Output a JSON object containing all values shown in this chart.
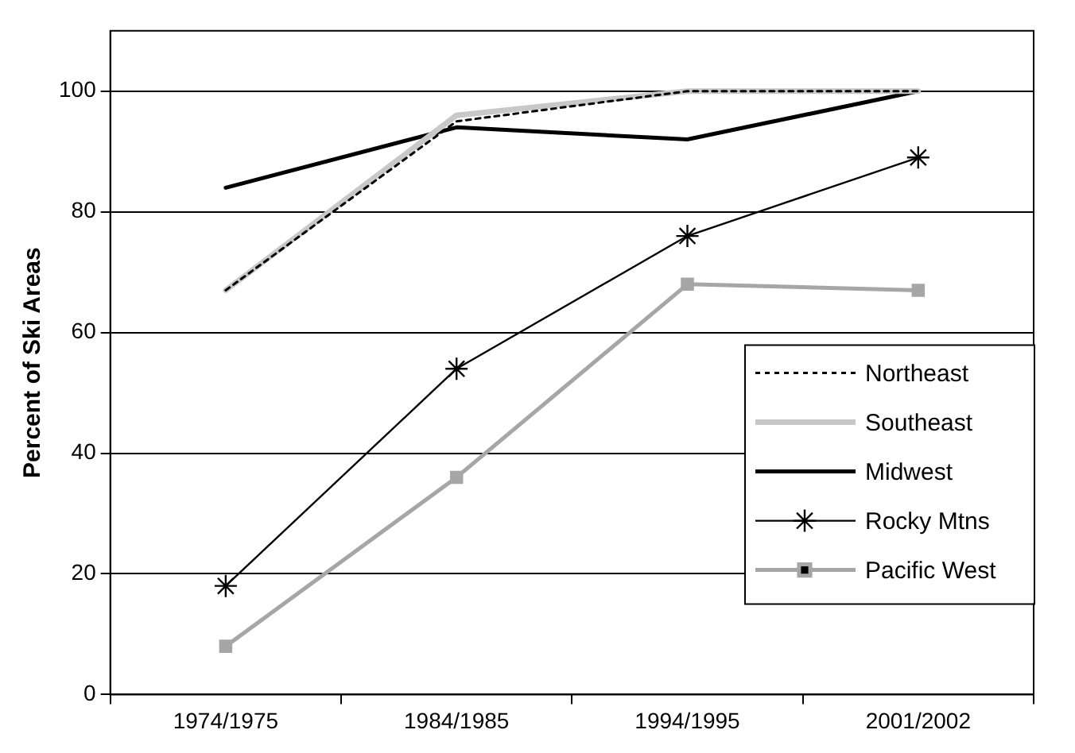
{
  "chart_data": {
    "type": "line",
    "ylabel": "Percent of Ski Areas",
    "categories": [
      "1974/1975",
      "1984/1985",
      "1994/1995",
      "2001/2002"
    ],
    "ylim": [
      0,
      110
    ],
    "yticks": [
      0,
      20,
      40,
      60,
      80,
      100
    ],
    "grid": "y",
    "legend": "right",
    "series": [
      {
        "name": "Northeast",
        "color": "#000000",
        "values": [
          67,
          95,
          100,
          100
        ],
        "line_style": "dotted",
        "marker": "none"
      },
      {
        "name": "Southeast",
        "color": "#c8c8c8",
        "values": [
          67,
          96,
          100,
          100
        ],
        "line_style": "solid",
        "marker": "none"
      },
      {
        "name": "Midwest",
        "color": "#000000",
        "values": [
          84,
          94,
          92,
          100
        ],
        "line_style": "solid",
        "marker": "none"
      },
      {
        "name": "Rocky Mtns",
        "color": "#000000",
        "values": [
          18,
          54,
          76,
          89
        ],
        "line_style": "solid",
        "marker": "cross"
      },
      {
        "name": "Pacific West",
        "color": "#a6a6a6",
        "values": [
          8,
          36,
          68,
          67
        ],
        "line_style": "solid",
        "marker": "square"
      }
    ]
  }
}
